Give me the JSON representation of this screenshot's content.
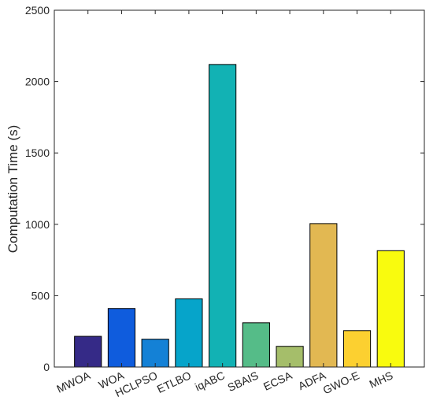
{
  "chart_data": {
    "type": "bar",
    "title": "",
    "xlabel": "",
    "ylabel": "Computation Time (s)",
    "ylim": [
      0,
      2500
    ],
    "yticks": [
      0,
      500,
      1000,
      1500,
      2000,
      2500
    ],
    "grid": false,
    "legend": "none",
    "categories": [
      "MWOA",
      "WOA",
      "HCLPSO",
      "ETLBO",
      "iqABC",
      "SBAIS",
      "ECSA",
      "ADFA",
      "GWO-E",
      "MHS"
    ],
    "values": [
      215,
      410,
      195,
      478,
      2120,
      310,
      145,
      1005,
      255,
      815
    ],
    "colors": [
      "#352a87",
      "#0f5cdd",
      "#1481d6",
      "#06a4ca",
      "#12b2b4",
      "#55bc88",
      "#a5be6a",
      "#e2b852",
      "#fcd030",
      "#f9fb0e"
    ]
  }
}
